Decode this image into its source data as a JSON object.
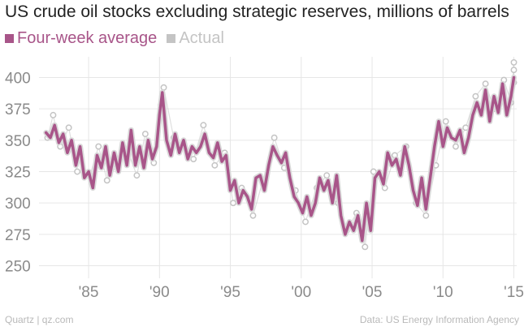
{
  "chart_data": {
    "type": "line",
    "title": "US crude oil stocks excluding strategic reserves, millions of barrels",
    "xlabel": "",
    "ylabel": "",
    "xlim": [
      1981.5,
      2015.2
    ],
    "ylim": [
      240,
      410
    ],
    "x_ticks": [
      1985,
      1990,
      1995,
      2000,
      2005,
      2010,
      2015
    ],
    "x_tick_labels": [
      "'85",
      "'90",
      "'95",
      "'00",
      "'05",
      "'10",
      "'15"
    ],
    "y_ticks": [
      250,
      275,
      300,
      325,
      350,
      375,
      400
    ],
    "y_tick_labels": [
      "250",
      "275",
      "300",
      "325",
      "350",
      "375",
      "400"
    ],
    "grid": true,
    "legend_position": "top-left",
    "series": [
      {
        "name": "Four-week average",
        "color": "#a85589",
        "x": [
          1982.0,
          1982.3,
          1982.6,
          1982.9,
          1983.2,
          1983.5,
          1983.8,
          1984.1,
          1984.4,
          1984.7,
          1985.0,
          1985.3,
          1985.6,
          1985.9,
          1986.2,
          1986.5,
          1986.8,
          1987.1,
          1987.4,
          1987.7,
          1988.0,
          1988.3,
          1988.6,
          1988.9,
          1989.2,
          1989.5,
          1989.8,
          1990.0,
          1990.2,
          1990.5,
          1990.8,
          1991.1,
          1991.4,
          1991.7,
          1992.0,
          1992.3,
          1992.6,
          1992.9,
          1993.2,
          1993.5,
          1993.8,
          1994.1,
          1994.4,
          1994.7,
          1995.0,
          1995.3,
          1995.6,
          1995.9,
          1996.2,
          1996.5,
          1996.8,
          1997.1,
          1997.4,
          1997.7,
          1998.0,
          1998.3,
          1998.6,
          1998.9,
          1999.2,
          1999.5,
          1999.8,
          2000.1,
          2000.4,
          2000.7,
          2001.0,
          2001.3,
          2001.6,
          2001.9,
          2002.2,
          2002.5,
          2002.8,
          2003.1,
          2003.4,
          2003.7,
          2004.0,
          2004.3,
          2004.6,
          2004.9,
          2005.2,
          2005.5,
          2005.8,
          2006.1,
          2006.4,
          2006.7,
          2007.0,
          2007.3,
          2007.6,
          2007.9,
          2008.2,
          2008.5,
          2008.8,
          2009.1,
          2009.4,
          2009.7,
          2010.0,
          2010.3,
          2010.6,
          2010.9,
          2011.2,
          2011.5,
          2011.8,
          2012.1,
          2012.4,
          2012.7,
          2013.0,
          2013.3,
          2013.6,
          2013.9,
          2014.2,
          2014.5,
          2014.8,
          2015.0
        ],
        "values": [
          356,
          352,
          362,
          348,
          355,
          340,
          350,
          330,
          345,
          320,
          325,
          312,
          338,
          328,
          345,
          322,
          340,
          325,
          348,
          330,
          358,
          330,
          345,
          328,
          350,
          335,
          345,
          370,
          388,
          350,
          338,
          355,
          340,
          350,
          335,
          345,
          340,
          345,
          355,
          340,
          336,
          348,
          333,
          338,
          310,
          318,
          300,
          310,
          305,
          295,
          320,
          322,
          310,
          330,
          345,
          338,
          332,
          340,
          320,
          305,
          300,
          292,
          305,
          290,
          300,
          320,
          310,
          318,
          300,
          322,
          290,
          275,
          285,
          278,
          290,
          270,
          300,
          278,
          320,
          325,
          315,
          340,
          330,
          335,
          322,
          345,
          330,
          310,
          298,
          320,
          295,
          320,
          345,
          365,
          345,
          360,
          352,
          350,
          358,
          340,
          352,
          370,
          380,
          370,
          390,
          365,
          385,
          372,
          395,
          370,
          385,
          400
        ]
      },
      {
        "name": "Actual",
        "color": "#c4c4c4",
        "x": [
          1982.1,
          1982.5,
          1983.0,
          1983.6,
          1984.2,
          1985.1,
          1985.7,
          1986.3,
          1987.0,
          1987.8,
          1988.4,
          1989.0,
          1989.6,
          1990.1,
          1990.3,
          1991.0,
          1991.6,
          1992.4,
          1993.1,
          1993.9,
          1994.6,
          1995.2,
          1995.8,
          1996.6,
          1997.3,
          1998.1,
          1998.8,
          1999.6,
          2000.3,
          2001.1,
          2001.8,
          2002.6,
          2003.2,
          2003.9,
          2004.5,
          2005.1,
          2005.9,
          2006.6,
          2007.4,
          2008.1,
          2008.8,
          2009.5,
          2010.2,
          2010.9,
          2011.6,
          2012.3,
          2013.0,
          2013.6,
          2014.3,
          2014.8,
          2015.0,
          2015.0,
          2015.0
        ],
        "values": [
          352,
          370,
          345,
          360,
          325,
          322,
          345,
          318,
          330,
          340,
          322,
          355,
          332,
          378,
          392,
          352,
          345,
          335,
          362,
          330,
          340,
          300,
          312,
          290,
          318,
          352,
          328,
          310,
          285,
          312,
          322,
          300,
          278,
          292,
          265,
          325,
          312,
          338,
          345,
          300,
          290,
          330,
          365,
          345,
          360,
          385,
          395,
          375,
          398,
          380,
          412,
          406,
          396
        ]
      }
    ],
    "legend": [
      "Four-week average",
      "Actual"
    ]
  },
  "footer": {
    "left": "Quartz | qz.com",
    "right": "Data: US Energy Information Agency"
  }
}
